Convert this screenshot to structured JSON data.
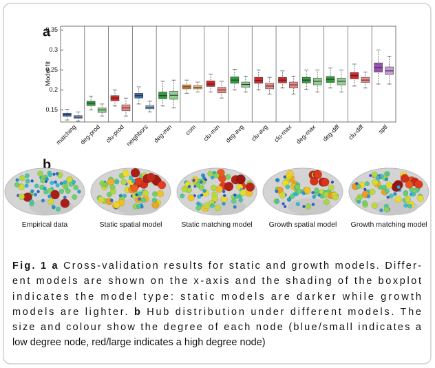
{
  "panel_a": "a",
  "panel_b": "b",
  "chart_data": {
    "type": "box",
    "ylabel": "Model fit",
    "categories": [
      "matching",
      "deg-prod",
      "clu-prod",
      "neighbors",
      "deg-min",
      "com",
      "clu-min",
      "deg-avg",
      "clu-avg",
      "clu-max",
      "deg-max",
      "deg-diff",
      "clu-diff",
      "sptl"
    ],
    "static": {
      "colors": [
        "#3a6fb0",
        "#2e9e3a",
        "#d62728",
        "#3a6fb0",
        "#2e9e3a",
        "#f28c28",
        "#d62728",
        "#2e9e3a",
        "#d62728",
        "#d62728",
        "#2e9e3a",
        "#2e9e3a",
        "#d62728",
        "#9b4fb0"
      ],
      "stats": [
        [
          0.125,
          0.134,
          0.138,
          0.142,
          0.152
        ],
        [
          0.15,
          0.161,
          0.167,
          0.172,
          0.185
        ],
        [
          0.16,
          0.173,
          0.18,
          0.186,
          0.2
        ],
        [
          0.165,
          0.18,
          0.186,
          0.192,
          0.208
        ],
        [
          0.16,
          0.178,
          0.186,
          0.195,
          0.222
        ],
        [
          0.192,
          0.203,
          0.208,
          0.213,
          0.225
        ],
        [
          0.195,
          0.209,
          0.215,
          0.223,
          0.24
        ],
        [
          0.2,
          0.217,
          0.225,
          0.233,
          0.252
        ],
        [
          0.2,
          0.217,
          0.224,
          0.232,
          0.25
        ],
        [
          0.205,
          0.218,
          0.225,
          0.232,
          0.248
        ],
        [
          0.202,
          0.218,
          0.225,
          0.232,
          0.25
        ],
        [
          0.205,
          0.219,
          0.227,
          0.234,
          0.255
        ],
        [
          0.21,
          0.228,
          0.236,
          0.244,
          0.265
        ],
        [
          0.215,
          0.245,
          0.256,
          0.268,
          0.3
        ]
      ]
    },
    "growth": {
      "colors": [
        "#7aa6d6",
        "#8fd08f",
        "#f08a8a",
        "#7aa6d6",
        "#8fd08f",
        "#f5ae6a",
        "#f08a8a",
        "#8fd08f",
        "#f08a8a",
        "#f08a8a",
        "#8fd08f",
        "#8fd08f",
        "#f08a8a",
        "#c99ad8"
      ],
      "stats": [
        [
          0.122,
          0.129,
          0.132,
          0.136,
          0.145
        ],
        [
          0.135,
          0.144,
          0.15,
          0.155,
          0.165
        ],
        [
          0.135,
          0.148,
          0.155,
          0.163,
          0.18
        ],
        [
          0.145,
          0.153,
          0.157,
          0.161,
          0.172
        ],
        [
          0.155,
          0.177,
          0.187,
          0.197,
          0.225
        ],
        [
          0.195,
          0.203,
          0.207,
          0.211,
          0.22
        ],
        [
          0.18,
          0.193,
          0.2,
          0.207,
          0.222
        ],
        [
          0.195,
          0.207,
          0.214,
          0.22,
          0.235
        ],
        [
          0.19,
          0.203,
          0.21,
          0.217,
          0.232
        ],
        [
          0.19,
          0.205,
          0.213,
          0.22,
          0.235
        ],
        [
          0.195,
          0.213,
          0.222,
          0.23,
          0.25
        ],
        [
          0.195,
          0.213,
          0.222,
          0.23,
          0.25
        ],
        [
          0.205,
          0.219,
          0.225,
          0.232,
          0.245
        ],
        [
          0.215,
          0.239,
          0.248,
          0.258,
          0.285
        ]
      ]
    },
    "ylim": [
      0.12,
      0.36
    ],
    "yticks": [
      0.15,
      0.2,
      0.25,
      0.3,
      0.35
    ]
  },
  "brains": [
    "Empirical data",
    "Static spatial model",
    "Static matching model",
    "Growth spatial model",
    "Growth matching model"
  ],
  "caption": {
    "fig": "Fig. 1",
    "a": "a",
    "b": "b",
    "line1": "Cross-validation results for static and growth models. Differ-",
    "line2": "ent models are shown on the x-axis and the shading of the boxplot",
    "line3": "indicates the model type: static models are darker while growth",
    "line4a": "models are lighter.",
    "line4b": "Hub distribution under different models. The",
    "line5": "size and colour show the degree of each node (blue/small indicates a",
    "line6": "low degree node, red/large indicates a high degree node)"
  }
}
